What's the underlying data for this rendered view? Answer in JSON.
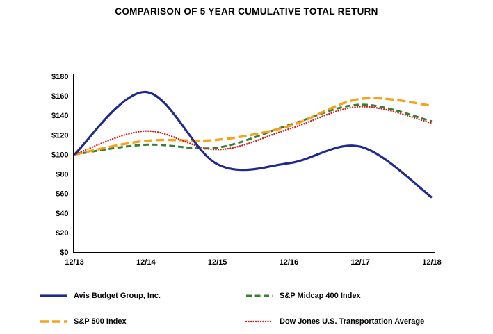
{
  "page": {
    "background": "#ffffff"
  },
  "chart_data": {
    "type": "line",
    "title": "COMPARISON OF 5 YEAR CUMULATIVE TOTAL RETURN",
    "x": [
      "12/13",
      "12/14",
      "12/15",
      "12/16",
      "12/17",
      "12/18"
    ],
    "xlabel": "",
    "ylabel": "",
    "ylim": [
      0,
      180
    ],
    "y_tick_step": 20,
    "y_ticks": [
      {
        "label": "$0",
        "value": 0
      },
      {
        "label": "$20",
        "value": 20
      },
      {
        "label": "$40",
        "value": 40
      },
      {
        "label": "$60",
        "value": 60
      },
      {
        "label": "$80",
        "value": 80
      },
      {
        "label": "$100",
        "value": 100
      },
      {
        "label": "$120",
        "value": 120
      },
      {
        "label": "$140",
        "value": 140
      },
      {
        "label": "$160",
        "value": 160
      },
      {
        "label": "$180",
        "value": 180
      }
    ],
    "grid": false,
    "legend_position": "bottom",
    "axis_color": "#000000",
    "series": [
      {
        "name": "Avis Budget Group, Inc.",
        "color": "#1f2a8c",
        "line_style": "solid",
        "line_width": 3.2,
        "values": [
          100,
          164,
          90,
          91,
          108,
          56
        ]
      },
      {
        "name": "S&P Midcap 400 Index",
        "color": "#377f33",
        "line_style": "dash",
        "line_width": 3,
        "values": [
          100,
          110,
          107,
          130,
          151,
          134
        ]
      },
      {
        "name": "S&P 500 Index",
        "color": "#f5a21d",
        "line_style": "longdash",
        "line_width": 3.4,
        "values": [
          100,
          114,
          115,
          129,
          157,
          150
        ]
      },
      {
        "name": "Dow Jones U.S. Transportation Average",
        "color": "#cf2020",
        "line_style": "dot",
        "line_width": 2.4,
        "values": [
          100,
          124,
          105,
          126,
          149,
          132
        ]
      }
    ],
    "draw_order": [
      1,
      2,
      3,
      0
    ]
  }
}
